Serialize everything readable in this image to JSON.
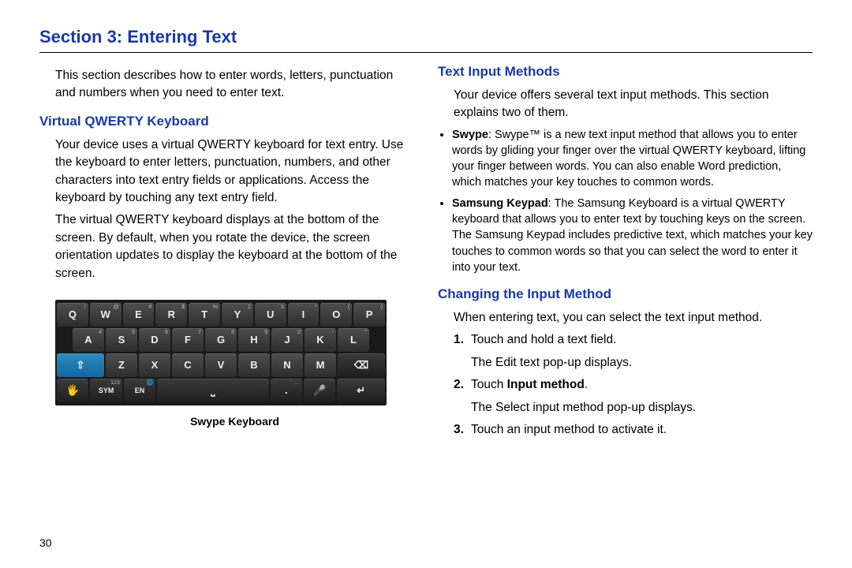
{
  "section_title": "Section 3: Entering Text",
  "page_number": "30",
  "colors": {
    "heading": "#1a3aa0",
    "text": "#000000",
    "bg": "#ffffff"
  },
  "left": {
    "intro": "This section describes how to enter words, letters, punctuation and numbers when you need to enter text.",
    "h_qwerty": "Virtual QWERTY Keyboard",
    "qwerty_p1": "Your device uses a virtual QWERTY keyboard for text entry. Use the keyboard to enter letters, punctuation, numbers, and other characters into text entry fields or applications. Access the keyboard by touching any text entry field.",
    "qwerty_p2": "The virtual QWERTY keyboard displays at the bottom of the screen. By default, when you rotate the device, the screen orientation updates to display the keyboard at the bottom of the screen.",
    "kb_caption": "Swype Keyboard"
  },
  "right": {
    "h_methods": "Text Input Methods",
    "methods_p1": "Your device offers several text input methods. This section explains two of them.",
    "swype_lead": "Swype",
    "swype_body": ": Swype™ is a new text input method that allows you to enter words by gliding your finger over the virtual QWERTY keyboard, lifting your finger between words. You can also enable Word prediction, which matches your key touches to common words.",
    "samsung_lead": "Samsung Keypad",
    "samsung_body": ": The Samsung Keyboard is a virtual QWERTY keyboard that allows you to enter text by touching keys on the screen. The Samsung Keypad includes predictive text, which matches your key touches to common words so that you can select the word to enter it into your text.",
    "h_change": "Changing the Input Method",
    "change_p1": "When entering text, you can select the text input method.",
    "step1": "Touch and hold a text field.",
    "step1_sub": "The Edit text pop-up displays.",
    "step2_pre": "Touch ",
    "step2_bold": "Input method",
    "step2_post": ".",
    "step2_sub": "The Select input method pop-up displays.",
    "step3": "Touch an input method to activate it."
  },
  "keyboard": {
    "bg": "#1a1a1a",
    "key_face": "#3a3a3a",
    "shift_color": "#1565a0",
    "rows": [
      [
        {
          "l": "Q",
          "s": "!"
        },
        {
          "l": "W",
          "s": "@"
        },
        {
          "l": "E",
          "s": "#"
        },
        {
          "l": "R",
          "s": "$"
        },
        {
          "l": "T",
          "s": "%"
        },
        {
          "l": "Y",
          "s": "2"
        },
        {
          "l": "U",
          "s": "3"
        },
        {
          "l": "I",
          "s": "*"
        },
        {
          "l": "O",
          "s": "("
        },
        {
          "l": "P",
          "s": ")"
        }
      ],
      [
        {
          "l": "A",
          "s": "4"
        },
        {
          "l": "S",
          "s": "5"
        },
        {
          "l": "D",
          "s": "6"
        },
        {
          "l": "F",
          "s": "7"
        },
        {
          "l": "G",
          "s": "8"
        },
        {
          "l": "H",
          "s": "9"
        },
        {
          "l": "J",
          "s": "0"
        },
        {
          "l": "K",
          "s": "-"
        },
        {
          "l": "L",
          "s": "\""
        }
      ],
      [
        {
          "l": "⇧",
          "cls": "shift w15",
          "name": "shift-key"
        },
        {
          "l": "Z"
        },
        {
          "l": "X"
        },
        {
          "l": "C"
        },
        {
          "l": "V"
        },
        {
          "l": "B"
        },
        {
          "l": "N"
        },
        {
          "l": "M"
        },
        {
          "l": "⌫",
          "cls": "dark w15",
          "name": "backspace-key"
        }
      ],
      [
        {
          "l": "🖐",
          "s": "",
          "cls": "dark",
          "name": "swype-key"
        },
        {
          "l": "SYM",
          "s": "123",
          "cls": "dark",
          "name": "sym-key",
          "fs": "9px"
        },
        {
          "l": "EN",
          "s": "🌐",
          "cls": "dark",
          "name": "lang-key",
          "fs": "9px"
        },
        {
          "l": "⎵",
          "cls": "dark w35",
          "name": "space-key"
        },
        {
          "l": ".",
          "s": "…",
          "cls": "dark",
          "name": "period-key"
        },
        {
          "l": "🎤",
          "cls": "dark",
          "name": "mic-key"
        },
        {
          "l": "↵",
          "cls": "dark w15",
          "name": "enter-key"
        }
      ]
    ]
  }
}
